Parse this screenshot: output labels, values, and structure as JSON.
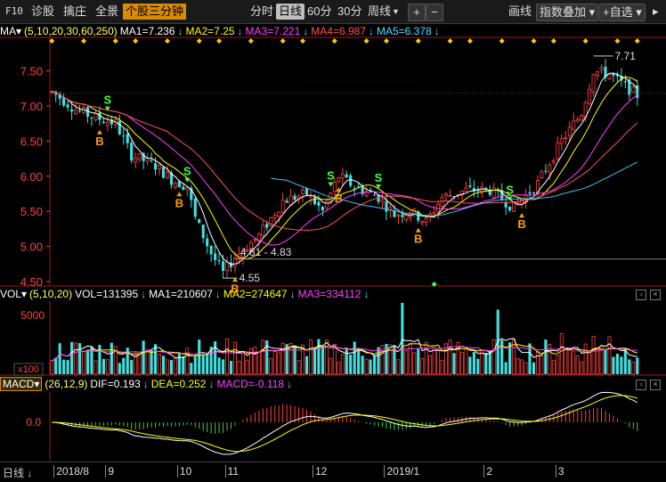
{
  "toolbar": {
    "f10": "F10",
    "diagnose": "诊股",
    "snipe": "擒庄",
    "fullview": "全景",
    "stock3min": "个股三分钟",
    "periods": [
      "分时",
      "日线",
      "60分",
      "30分",
      "周线"
    ],
    "active_period": "日线",
    "draw": "画线",
    "overlay_index": "指数叠加",
    "add_watch": "+自选"
  },
  "ma_indicator": {
    "name": "MA",
    "params": "(5,10,20,30,60,250)",
    "items": [
      {
        "label": "MA1=7.236",
        "color": "#ffffff"
      },
      {
        "label": "MA2=7.25",
        "color": "#ffff00"
      },
      {
        "label": "MA3=7.221",
        "color": "#ff40ff"
      },
      {
        "label": "MA4=6.987",
        "color": "#ff5050"
      },
      {
        "label": "MA5=6.378",
        "color": "#40e0ff"
      }
    ]
  },
  "vol_indicator": {
    "name": "VOL",
    "params": "(5,10,20)",
    "items": [
      {
        "label": "VOL=131395",
        "color": "#ffffff"
      },
      {
        "label": "MA1=210607",
        "color": "#ffffff"
      },
      {
        "label": "MA2=274647",
        "color": "#ffff00"
      },
      {
        "label": "MA3=334112",
        "color": "#ff40ff"
      }
    ]
  },
  "macd_indicator": {
    "name": "MACD",
    "params": "(26,12,9)",
    "items": [
      {
        "label": "DIF=0.193",
        "color": "#ffffff"
      },
      {
        "label": "DEA=0.252",
        "color": "#ffff00"
      },
      {
        "label": "MACD=-0.118",
        "color": "#ff40ff"
      }
    ]
  },
  "bottom": {
    "period": "日线",
    "months": [
      "2018/8",
      "9",
      "10",
      "11",
      "12",
      "2019/1",
      "2",
      "3"
    ]
  },
  "colors": {
    "up": "#ff4040",
    "down": "#40e0e0",
    "ma5": "#ffffff",
    "ma10": "#ffff00",
    "ma20": "#ff40ff",
    "ma30": "#ff5050",
    "ma60": "#40c0ff",
    "axis": "#ff4040",
    "buy": "#ff9900",
    "sell": "#40ff40"
  },
  "chart_data": {
    "type": "candlestick",
    "price_axis": {
      "ticks": [
        "7.50",
        "7.00",
        "6.50",
        "6.00",
        "5.50",
        "5.00",
        "4.50"
      ],
      "range": [
        4.45,
        7.95
      ]
    },
    "volume_axis": {
      "ticks": [
        "5000"
      ],
      "unit": "x100"
    },
    "macd_axis": {
      "ticks": [
        "0.0"
      ]
    },
    "annotations": {
      "high": "7.71",
      "low": "4.55",
      "range_label": "4.81 - 4.83"
    },
    "price_waypoints": [
      [
        0,
        7.2
      ],
      [
        6,
        6.95
      ],
      [
        10,
        6.85
      ],
      [
        16,
        6.75
      ],
      [
        20,
        6.3
      ],
      [
        26,
        6.15
      ],
      [
        30,
        5.95
      ],
      [
        34,
        5.85
      ],
      [
        36,
        5.4
      ],
      [
        40,
        4.9
      ],
      [
        43,
        4.62
      ],
      [
        46,
        4.85
      ],
      [
        52,
        5.15
      ],
      [
        58,
        5.65
      ],
      [
        64,
        5.75
      ],
      [
        68,
        5.5
      ],
      [
        72,
        6.0
      ],
      [
        76,
        5.85
      ],
      [
        82,
        5.7
      ],
      [
        86,
        5.45
      ],
      [
        90,
        5.5
      ],
      [
        94,
        5.35
      ],
      [
        98,
        5.7
      ],
      [
        104,
        5.8
      ],
      [
        110,
        5.8
      ],
      [
        116,
        5.55
      ],
      [
        122,
        5.9
      ],
      [
        128,
        6.5
      ],
      [
        133,
        6.9
      ],
      [
        136,
        7.5
      ],
      [
        140,
        7.45
      ],
      [
        147,
        7.15
      ]
    ],
    "signals": [
      {
        "type": "S",
        "bar": 14
      },
      {
        "type": "B",
        "bar": 12
      },
      {
        "type": "S",
        "bar": 34
      },
      {
        "type": "B",
        "bar": 32
      },
      {
        "type": "B",
        "bar": 46
      },
      {
        "type": "S",
        "bar": 70
      },
      {
        "type": "B",
        "bar": 72
      },
      {
        "type": "S",
        "bar": 82
      },
      {
        "type": "B",
        "bar": 92
      },
      {
        "type": "S",
        "bar": 115
      },
      {
        "type": "B",
        "bar": 118
      }
    ]
  }
}
